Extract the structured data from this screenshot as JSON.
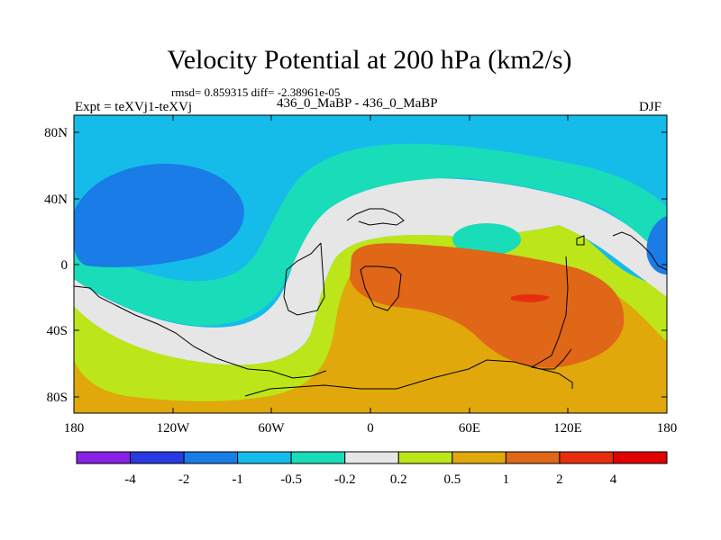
{
  "title": "Velocity Potential at 200 hPa (km2/s)",
  "stats_line": "rmsd= 0.859315 diff= -2.38961e-05",
  "experiment": "Expt = teXVj1-teXVj",
  "comparison": "436_0_MaBP - 436_0_MaBP",
  "season": "DJF",
  "map_data": {
    "type": "filled-contour-map",
    "variable": "velocity potential difference",
    "units": "km2/s",
    "lat_ticks": [
      "80N",
      "40N",
      "0",
      "40S",
      "80S"
    ],
    "lon_ticks": [
      "180",
      "120W",
      "60W",
      "0",
      "60E",
      "120E",
      "180"
    ],
    "colorbar": {
      "colors": [
        "#8a22e6",
        "#2a39e0",
        "#1a7ce6",
        "#15bcea",
        "#19dcb8",
        "#e6e6e6",
        "#bce619",
        "#e0a80a",
        "#e06618",
        "#e62e0f",
        "#e00000"
      ],
      "labels": [
        "-4",
        "-2",
        "-1",
        "-0.5",
        "-0.2",
        "0.2",
        "0.5",
        "1",
        "2",
        "4"
      ]
    }
  }
}
